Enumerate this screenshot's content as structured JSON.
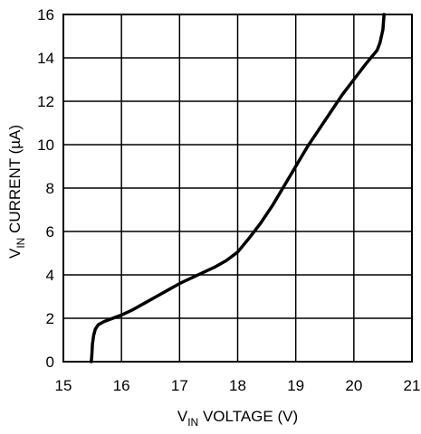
{
  "chart_data": {
    "type": "line",
    "title": "",
    "xlabel": {
      "prefix": "V",
      "subscript": "IN",
      "suffix": " VOLTAGE  (V)"
    },
    "ylabel": {
      "prefix": "V",
      "subscript": "IN",
      "suffix": " CURRENT (µA)"
    },
    "xlim": [
      15,
      21
    ],
    "ylim": [
      0,
      16
    ],
    "xticks": [
      15,
      16,
      17,
      18,
      19,
      20,
      21
    ],
    "yticks": [
      0,
      2,
      4,
      6,
      8,
      10,
      12,
      14,
      16
    ],
    "grid": true,
    "colors": {
      "line": "#000000",
      "grid": "#000000",
      "background": "#ffffff"
    },
    "series": [
      {
        "x": [
          15.48,
          15.49,
          15.5,
          15.52,
          15.55,
          15.6,
          15.7,
          15.8,
          15.9,
          16.0,
          16.2,
          16.4,
          16.6,
          16.8,
          17.0,
          17.2,
          17.4,
          17.6,
          17.8,
          18.0,
          18.2,
          18.4,
          18.6,
          18.8,
          19.0,
          19.2,
          19.4,
          19.6,
          19.8,
          20.0,
          20.2,
          20.4,
          20.45,
          20.5,
          20.52
        ],
        "y": [
          0.0,
          0.3,
          0.8,
          1.2,
          1.5,
          1.7,
          1.85,
          1.95,
          2.05,
          2.15,
          2.4,
          2.7,
          3.0,
          3.3,
          3.6,
          3.85,
          4.1,
          4.35,
          4.65,
          5.05,
          5.7,
          6.4,
          7.2,
          8.1,
          9.0,
          9.9,
          10.7,
          11.5,
          12.3,
          13.0,
          13.7,
          14.35,
          14.7,
          15.3,
          16.0
        ]
      }
    ]
  }
}
